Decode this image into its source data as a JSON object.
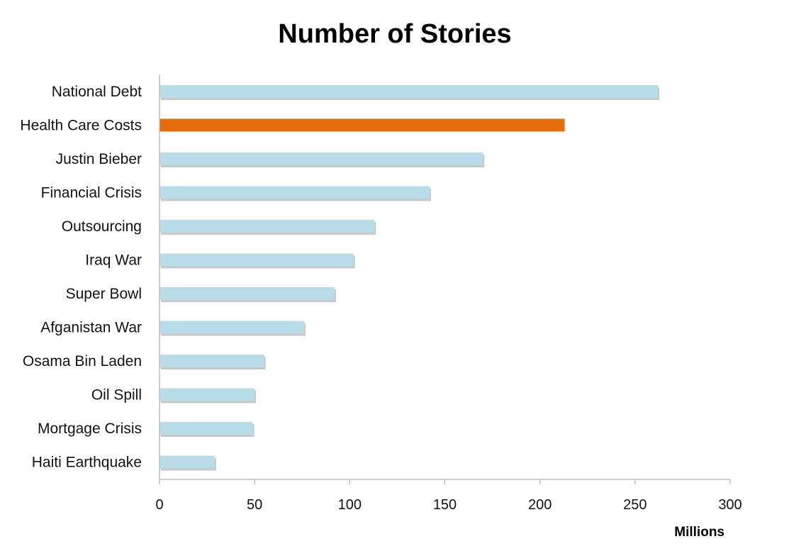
{
  "chart_data": {
    "type": "bar",
    "orientation": "horizontal",
    "title": "Number of Stories",
    "xlabel": "Millions",
    "ylabel": "",
    "categories": [
      "National Debt",
      "Health Care Costs",
      "Justin Bieber",
      "Financial Crisis",
      "Outsourcing",
      "Iraq War",
      "Super Bowl",
      "Afganistan War",
      "Osama Bin Laden",
      "Oil Spill",
      "Mortgage Crisis",
      "Haiti Earthquake"
    ],
    "values": [
      262,
      213,
      170,
      142,
      113,
      102,
      92,
      76,
      55,
      50,
      49,
      29
    ],
    "xlim": [
      0,
      300
    ],
    "xticks": [
      0,
      50,
      100,
      150,
      200,
      250,
      300
    ],
    "grid": false,
    "highlight_category": "Health Care Costs",
    "colors": {
      "bar": "#b8dde8",
      "highlight": "#e46c0a",
      "shadow": "#9a9a9a",
      "axis": "#bfbfbf"
    }
  }
}
